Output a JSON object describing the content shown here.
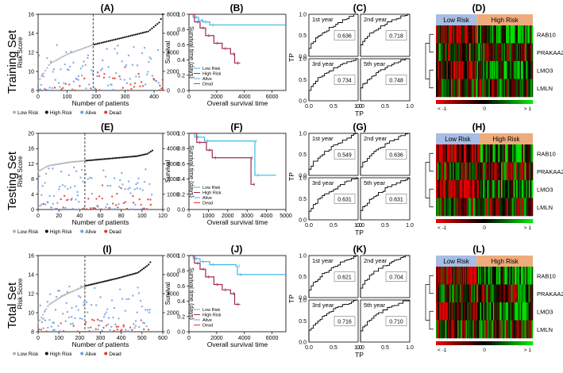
{
  "figure": {
    "row_labels": [
      "Training Set",
      "Testing Set",
      "Total Set"
    ],
    "panel_letters": [
      "(A)",
      "(B)",
      "(C)",
      "(D)",
      "(E)",
      "(F)",
      "(G)",
      "(H)",
      "(I)",
      "(J)",
      "(K)",
      "(L)"
    ],
    "colors": {
      "low_risk": "#b3b3b3",
      "high_risk": "#111111",
      "alive": "#6f9fe0",
      "dead": "#e0392b",
      "km_low": "#3fb8e8",
      "km_high": "#9c2b52",
      "hm_low_header": "#a7bde3",
      "hm_high_header": "#eeab7c"
    }
  },
  "chart_data": [
    {
      "id": "A",
      "type": "scatter",
      "title": "(A)",
      "xlabel": "Number of patients",
      "ylabel": "Risk Score",
      "y2label": "Survival time (days)",
      "xlim": [
        0,
        430
      ],
      "ylim": [
        8,
        16
      ],
      "y2lim": [
        0,
        8000
      ],
      "xticks": [
        0,
        100,
        200,
        300,
        400
      ],
      "yticks": [
        8,
        10,
        12,
        14,
        16
      ],
      "y2ticks": [
        0,
        2000,
        4000,
        6000,
        8000
      ],
      "n": 430,
      "cutoff": 190,
      "risk_curve": [
        [
          0,
          8.9
        ],
        [
          40,
          10.8
        ],
        [
          100,
          11.8
        ],
        [
          190,
          12.8
        ],
        [
          300,
          13.6
        ],
        [
          380,
          14.2
        ],
        [
          420,
          15.2
        ],
        [
          430,
          16.0
        ]
      ],
      "legend": [
        "Low Risk",
        "High Risk",
        "Alive",
        "Dead"
      ]
    },
    {
      "id": "B",
      "type": "line",
      "title": "(B)",
      "xlabel": "Overall survival time",
      "ylabel": "Survival",
      "xlim": [
        0,
        7000
      ],
      "ylim": [
        0,
        1.0
      ],
      "xticks": [
        0,
        2000,
        4000,
        6000
      ],
      "yticks": [
        0,
        0.2,
        0.4,
        0.6,
        0.8,
        1.0
      ],
      "series": [
        {
          "name": "Low Risk",
          "points": [
            [
              0,
              1
            ],
            [
              300,
              0.96
            ],
            [
              700,
              0.92
            ],
            [
              1000,
              0.9
            ],
            [
              1500,
              0.86
            ],
            [
              7000,
              0.86
            ]
          ]
        },
        {
          "name": "High Risk",
          "points": [
            [
              0,
              1
            ],
            [
              400,
              0.9
            ],
            [
              800,
              0.82
            ],
            [
              1200,
              0.72
            ],
            [
              1800,
              0.62
            ],
            [
              2400,
              0.55
            ],
            [
              3000,
              0.48
            ],
            [
              3300,
              0.36
            ],
            [
              3700,
              0.36
            ]
          ]
        }
      ],
      "legend": [
        "Low Risk",
        "High Risk",
        "Alive",
        "Dead"
      ]
    },
    {
      "id": "C",
      "type": "line",
      "title": "(C)",
      "xlabel": "TP",
      "ylabel": "TP",
      "xlim": [
        0,
        1
      ],
      "ylim": [
        0,
        1
      ],
      "ticks": [
        0.0,
        0.5,
        1.0
      ],
      "subplots": [
        {
          "label": "1st year",
          "auc": "0.636"
        },
        {
          "label": "2nd year",
          "auc": "0.718"
        },
        {
          "label": "3rd year",
          "auc": "0.734"
        },
        {
          "label": "5th year",
          "auc": "0.748"
        }
      ]
    },
    {
      "id": "D",
      "type": "heatmap",
      "title": "(D)",
      "groups": [
        "Low Risk",
        "High Risk"
      ],
      "genes": [
        "RAB10",
        "PRAKAA2",
        "LMO3",
        "LMLN"
      ],
      "colorbar": {
        "min_label": "< -1",
        "mid_label": "0",
        "max_label": "> 1"
      },
      "n_columns": 90,
      "split": 0.42
    },
    {
      "id": "E",
      "type": "scatter",
      "title": "(E)",
      "xlabel": "Number of patients",
      "ylabel": "Risk Score",
      "y2label": "Survival time (days)",
      "xlim": [
        0,
        120
      ],
      "ylim": [
        0,
        20
      ],
      "y2lim": [
        0,
        5000
      ],
      "xticks": [
        0,
        20,
        40,
        60,
        80,
        100,
        120
      ],
      "yticks": [
        0,
        4,
        8,
        12,
        16,
        20
      ],
      "y2ticks": [
        0,
        1000,
        2000,
        3000,
        4000,
        5000
      ],
      "n": 110,
      "cutoff": 45,
      "risk_curve": [
        [
          0,
          10.0
        ],
        [
          10,
          11.5
        ],
        [
          30,
          12.4
        ],
        [
          45,
          12.8
        ],
        [
          70,
          13.4
        ],
        [
          95,
          14.0
        ],
        [
          105,
          14.6
        ],
        [
          110,
          15.5
        ]
      ],
      "legend": [
        "Low Risk",
        "High Risk",
        "Alive",
        "Dead"
      ]
    },
    {
      "id": "F",
      "type": "line",
      "title": "(F)",
      "xlabel": "Overall survival time",
      "ylabel": "Survival",
      "xlim": [
        0,
        5000
      ],
      "ylim": [
        0,
        1.0
      ],
      "xticks": [
        0,
        1000,
        2000,
        3000,
        4000,
        5000
      ],
      "yticks": [
        0,
        0.2,
        0.4,
        0.6,
        0.8,
        1.0
      ],
      "series": [
        {
          "name": "Low Risk",
          "points": [
            [
              0,
              1
            ],
            [
              300,
              0.95
            ],
            [
              800,
              0.9
            ],
            [
              3300,
              0.9
            ],
            [
              3400,
              0.45
            ],
            [
              4500,
              0.45
            ]
          ]
        },
        {
          "name": "High Risk",
          "points": [
            [
              0,
              1
            ],
            [
              400,
              0.88
            ],
            [
              900,
              0.78
            ],
            [
              1200,
              0.68
            ],
            [
              3100,
              0.68
            ],
            [
              3200,
              0.33
            ],
            [
              3400,
              0.33
            ]
          ]
        }
      ],
      "legend": [
        "Low Risk",
        "High Risk",
        "Alive",
        "Dead"
      ]
    },
    {
      "id": "G",
      "type": "line",
      "title": "(G)",
      "xlabel": "TP",
      "ylabel": "TP",
      "xlim": [
        0,
        1
      ],
      "ylim": [
        0,
        1
      ],
      "ticks": [
        0.0,
        0.5,
        1.0
      ],
      "subplots": [
        {
          "label": "1st year",
          "auc": "0.549"
        },
        {
          "label": "2nd year",
          "auc": "0.636"
        },
        {
          "label": "3rd year",
          "auc": "0.631"
        },
        {
          "label": "5th year",
          "auc": "0.631"
        }
      ]
    },
    {
      "id": "H",
      "type": "heatmap",
      "title": "(H)",
      "groups": [
        "Low Risk",
        "High Risk"
      ],
      "genes": [
        "RAB10",
        "PRAKAA2",
        "LMO3",
        "LMLN"
      ],
      "colorbar": {
        "min_label": "< -1",
        "mid_label": "0",
        "max_label": "> 1"
      },
      "n_columns": 70,
      "split": 0.45
    },
    {
      "id": "I",
      "type": "scatter",
      "title": "(I)",
      "xlabel": "Number of patients",
      "ylabel": "Risk Score",
      "y2label": "Survival time (days)",
      "xlim": [
        0,
        600
      ],
      "ylim": [
        8,
        16
      ],
      "y2lim": [
        0,
        8000
      ],
      "xticks": [
        0,
        100,
        200,
        300,
        400,
        500,
        600
      ],
      "yticks": [
        8,
        10,
        12,
        14,
        16
      ],
      "y2ticks": [
        0,
        2000,
        4000,
        6000,
        8000
      ],
      "n": 540,
      "cutoff": 225,
      "risk_curve": [
        [
          0,
          8.9
        ],
        [
          50,
          10.8
        ],
        [
          120,
          11.8
        ],
        [
          225,
          12.8
        ],
        [
          380,
          13.6
        ],
        [
          480,
          14.2
        ],
        [
          530,
          15.0
        ],
        [
          540,
          15.3
        ]
      ],
      "legend": [
        "Low Risk",
        "High Risk",
        "Alive",
        "Dead"
      ]
    },
    {
      "id": "J",
      "type": "line",
      "title": "(J)",
      "xlabel": "Overall survival time",
      "ylabel": "Survival",
      "xlim": [
        0,
        7000
      ],
      "ylim": [
        0,
        1.0
      ],
      "xticks": [
        0,
        2000,
        4000,
        6000
      ],
      "yticks": [
        0,
        0.2,
        0.4,
        0.6,
        0.8,
        1.0
      ],
      "series": [
        {
          "name": "Low Risk",
          "points": [
            [
              0,
              1
            ],
            [
              300,
              0.96
            ],
            [
              800,
              0.92
            ],
            [
              1500,
              0.88
            ],
            [
              3400,
              0.86
            ],
            [
              3500,
              0.75
            ],
            [
              7000,
              0.75
            ]
          ]
        },
        {
          "name": "High Risk",
          "points": [
            [
              0,
              1
            ],
            [
              400,
              0.9
            ],
            [
              800,
              0.82
            ],
            [
              1200,
              0.72
            ],
            [
              1800,
              0.62
            ],
            [
              2400,
              0.55
            ],
            [
              3000,
              0.5
            ],
            [
              3300,
              0.36
            ],
            [
              3700,
              0.36
            ]
          ]
        }
      ],
      "legend": [
        "Low Risk",
        "High Risk",
        "Alive",
        "Dead"
      ]
    },
    {
      "id": "K",
      "type": "line",
      "title": "(K)",
      "xlabel": "TP",
      "ylabel": "TP",
      "xlim": [
        0,
        1
      ],
      "ylim": [
        0,
        1
      ],
      "ticks": [
        0.0,
        0.5,
        1.0
      ],
      "subplots": [
        {
          "label": "1st year",
          "auc": "0.621"
        },
        {
          "label": "2nd year",
          "auc": "0.704"
        },
        {
          "label": "3rd year",
          "auc": "0.716"
        },
        {
          "label": "5th year",
          "auc": "0.710"
        }
      ]
    },
    {
      "id": "L",
      "type": "heatmap",
      "title": "(L)",
      "groups": [
        "Low Risk",
        "High Risk"
      ],
      "genes": [
        "RAB10",
        "PRAKAA2",
        "LMO3",
        "LMLN"
      ],
      "colorbar": {
        "min_label": "< -1",
        "mid_label": "0",
        "max_label": "> 1"
      },
      "n_columns": 90,
      "split": 0.42
    }
  ]
}
